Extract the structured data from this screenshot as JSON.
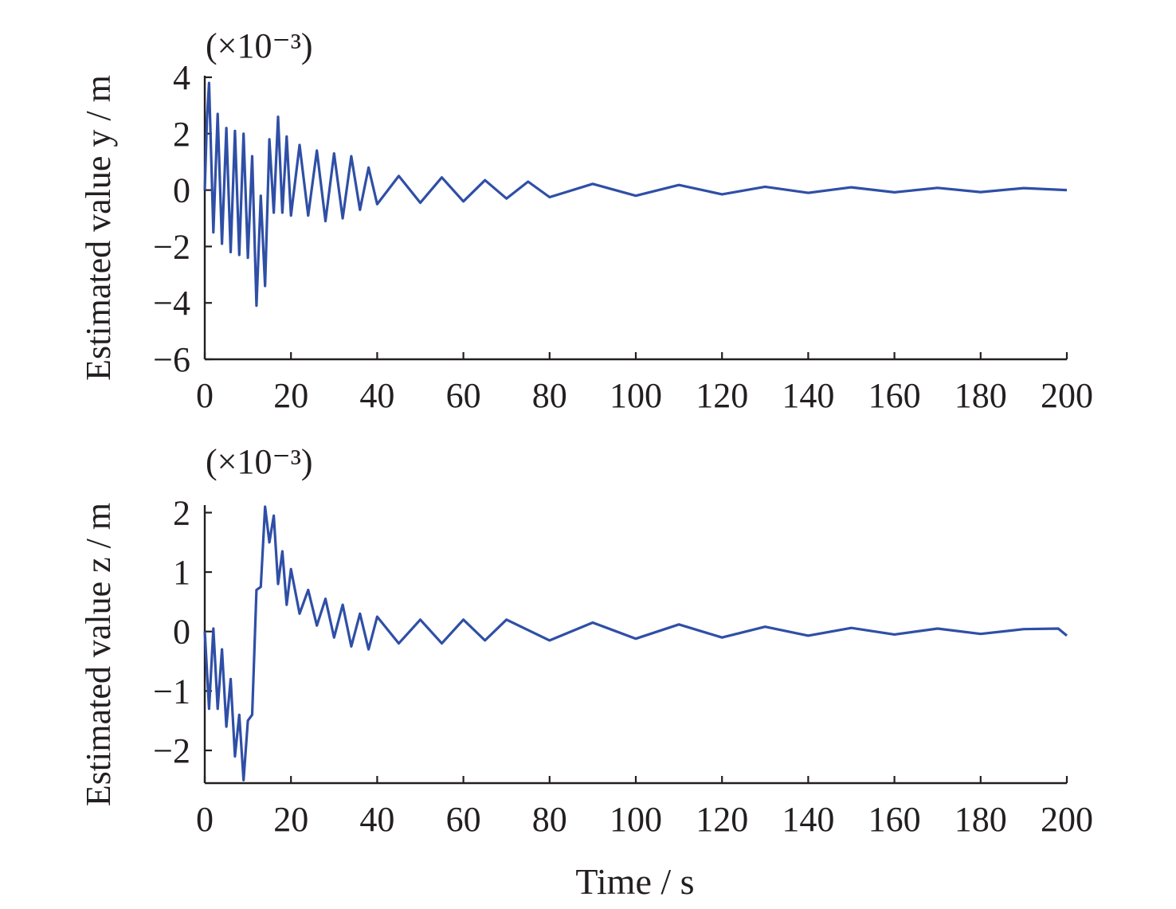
{
  "chart_data": [
    {
      "type": "line",
      "ylabel": "Estimated value y / m",
      "scale_label": "(×10⁻³)",
      "xlim": [
        0,
        200
      ],
      "ylim": [
        -6,
        4
      ],
      "xticks": [
        "0",
        "20",
        "40",
        "60",
        "80",
        "100",
        "120",
        "140",
        "160",
        "180",
        "200"
      ],
      "yticks": [
        "4",
        "2",
        "0",
        "−2",
        "−4",
        "−6"
      ],
      "grid": false,
      "series": [
        {
          "color": "#2f4fa6",
          "x": [
            0,
            0.5,
            1,
            2,
            3,
            4,
            5,
            6,
            7,
            8,
            9,
            10,
            11,
            12,
            13,
            14,
            15,
            16,
            17,
            18,
            19,
            20,
            22,
            24,
            26,
            28,
            30,
            32,
            34,
            36,
            38,
            40,
            45,
            50,
            55,
            60,
            65,
            70,
            75,
            80,
            90,
            100,
            110,
            120,
            130,
            140,
            150,
            160,
            170,
            180,
            190,
            200
          ],
          "y": [
            0,
            2.5,
            3.8,
            -1.5,
            2.7,
            -1.9,
            2.2,
            -2.2,
            2.1,
            -2.3,
            2.0,
            -2.4,
            1.2,
            -4.1,
            -0.2,
            -3.4,
            1.8,
            -0.8,
            2.6,
            -0.8,
            1.9,
            -0.9,
            1.6,
            -0.9,
            1.4,
            -1.1,
            1.3,
            -1.0,
            1.2,
            -0.7,
            0.8,
            -0.5,
            0.5,
            -0.45,
            0.45,
            -0.4,
            0.35,
            -0.3,
            0.3,
            -0.25,
            0.22,
            -0.2,
            0.18,
            -0.15,
            0.12,
            -0.1,
            0.1,
            -0.08,
            0.08,
            -0.07,
            0.07,
            0
          ]
        }
      ]
    },
    {
      "type": "line",
      "ylabel": "Estimated value z / m",
      "scale_label": "(×10⁻³)",
      "xlim": [
        0,
        200
      ],
      "ylim": [
        -2.55,
        2.1
      ],
      "xticks": [
        "0",
        "20",
        "40",
        "60",
        "80",
        "100",
        "120",
        "140",
        "160",
        "180",
        "200"
      ],
      "yticks": [
        "2",
        "1",
        "0",
        "−1",
        "−2"
      ],
      "grid": false,
      "series": [
        {
          "color": "#2f4fa6",
          "x": [
            0,
            1,
            2,
            3,
            4,
            5,
            6,
            7,
            8,
            9,
            10,
            11,
            12,
            13,
            14,
            15,
            16,
            17,
            18,
            19,
            20,
            22,
            24,
            26,
            28,
            30,
            32,
            34,
            36,
            38,
            40,
            45,
            50,
            55,
            60,
            65,
            70,
            80,
            90,
            100,
            110,
            120,
            130,
            140,
            150,
            160,
            170,
            180,
            190,
            198,
            200
          ],
          "y": [
            0,
            -1.3,
            0.05,
            -1.3,
            -0.3,
            -1.6,
            -0.8,
            -2.1,
            -1.4,
            -2.5,
            -1.5,
            -1.4,
            0.7,
            0.75,
            2.1,
            1.5,
            1.95,
            0.8,
            1.35,
            0.45,
            1.05,
            0.3,
            0.7,
            0.1,
            0.55,
            -0.1,
            0.45,
            -0.25,
            0.3,
            -0.3,
            0.25,
            -0.2,
            0.2,
            -0.2,
            0.2,
            -0.15,
            0.2,
            -0.15,
            0.15,
            -0.12,
            0.12,
            -0.1,
            0.08,
            -0.07,
            0.06,
            -0.05,
            0.05,
            -0.04,
            0.04,
            0.05,
            -0.07
          ]
        }
      ]
    }
  ],
  "xlabel": "Time / s"
}
